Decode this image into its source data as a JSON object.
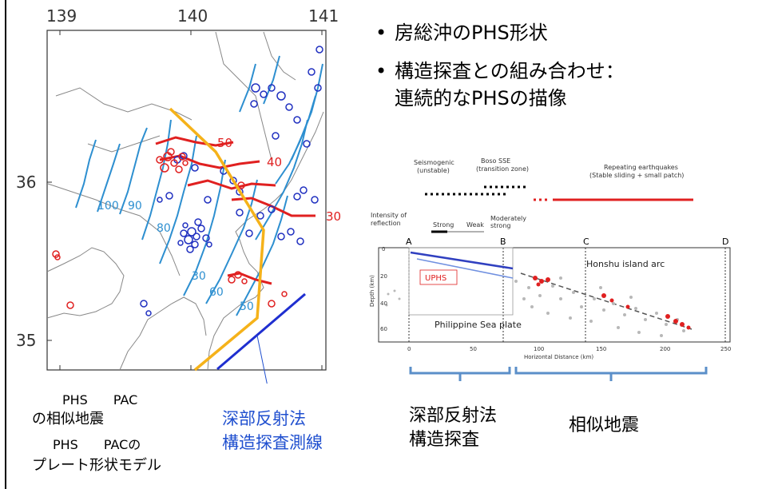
{
  "map": {
    "lon_ticks": [
      "139",
      "140",
      "141"
    ],
    "lat_ticks": [
      "36",
      "35"
    ],
    "contours_pac": [
      "100",
      "90",
      "80",
      "60",
      "50",
      "30"
    ],
    "contours_phs": [
      "50",
      "40",
      "30"
    ]
  },
  "bullets": [
    "房総沖のPHS形状",
    "構造探査との組み合わせ：",
    "連続的なPHSの描像"
  ],
  "section": {
    "zones": [
      "Seismogenic\n(unstable)",
      "Boso SSE\n(transition zone)",
      "Repeating earthquakes\n(Stable sliding + small patch)"
    ],
    "intensity_label": "Intensity of\nreflection",
    "intensity_levels": [
      "Strong",
      "Weak",
      "Moderately\nstrong"
    ],
    "points": [
      "A",
      "B",
      "C",
      "D"
    ],
    "honshu": "Honshu island arc",
    "uphs": "UPHS",
    "plate": "Philippine Sea plate",
    "ylabel": "Depth (km)",
    "xlabel": "Horizontal Distance (km)",
    "yticks": [
      "0",
      "20",
      "40",
      "60"
    ],
    "xticks": [
      "0",
      "50",
      "100",
      "150",
      "200",
      "250"
    ]
  },
  "legend": {
    "line1": "PHS　　PAC",
    "line2": "の相似地震",
    "line3": "PHS　　PACの",
    "line4": "プレート形状モデル",
    "survey1": "深部反射法",
    "survey2": "構造探査測線"
  },
  "brackets": {
    "left1": "深部反射法",
    "left2": "構造探査",
    "right": "相似地震"
  },
  "colors": {
    "phs": "#e02020",
    "pac": "#2030c0",
    "contour": "#2d8fd0",
    "survey_blue": "#1f2fd0",
    "survey_orange": "#f5b21a"
  }
}
